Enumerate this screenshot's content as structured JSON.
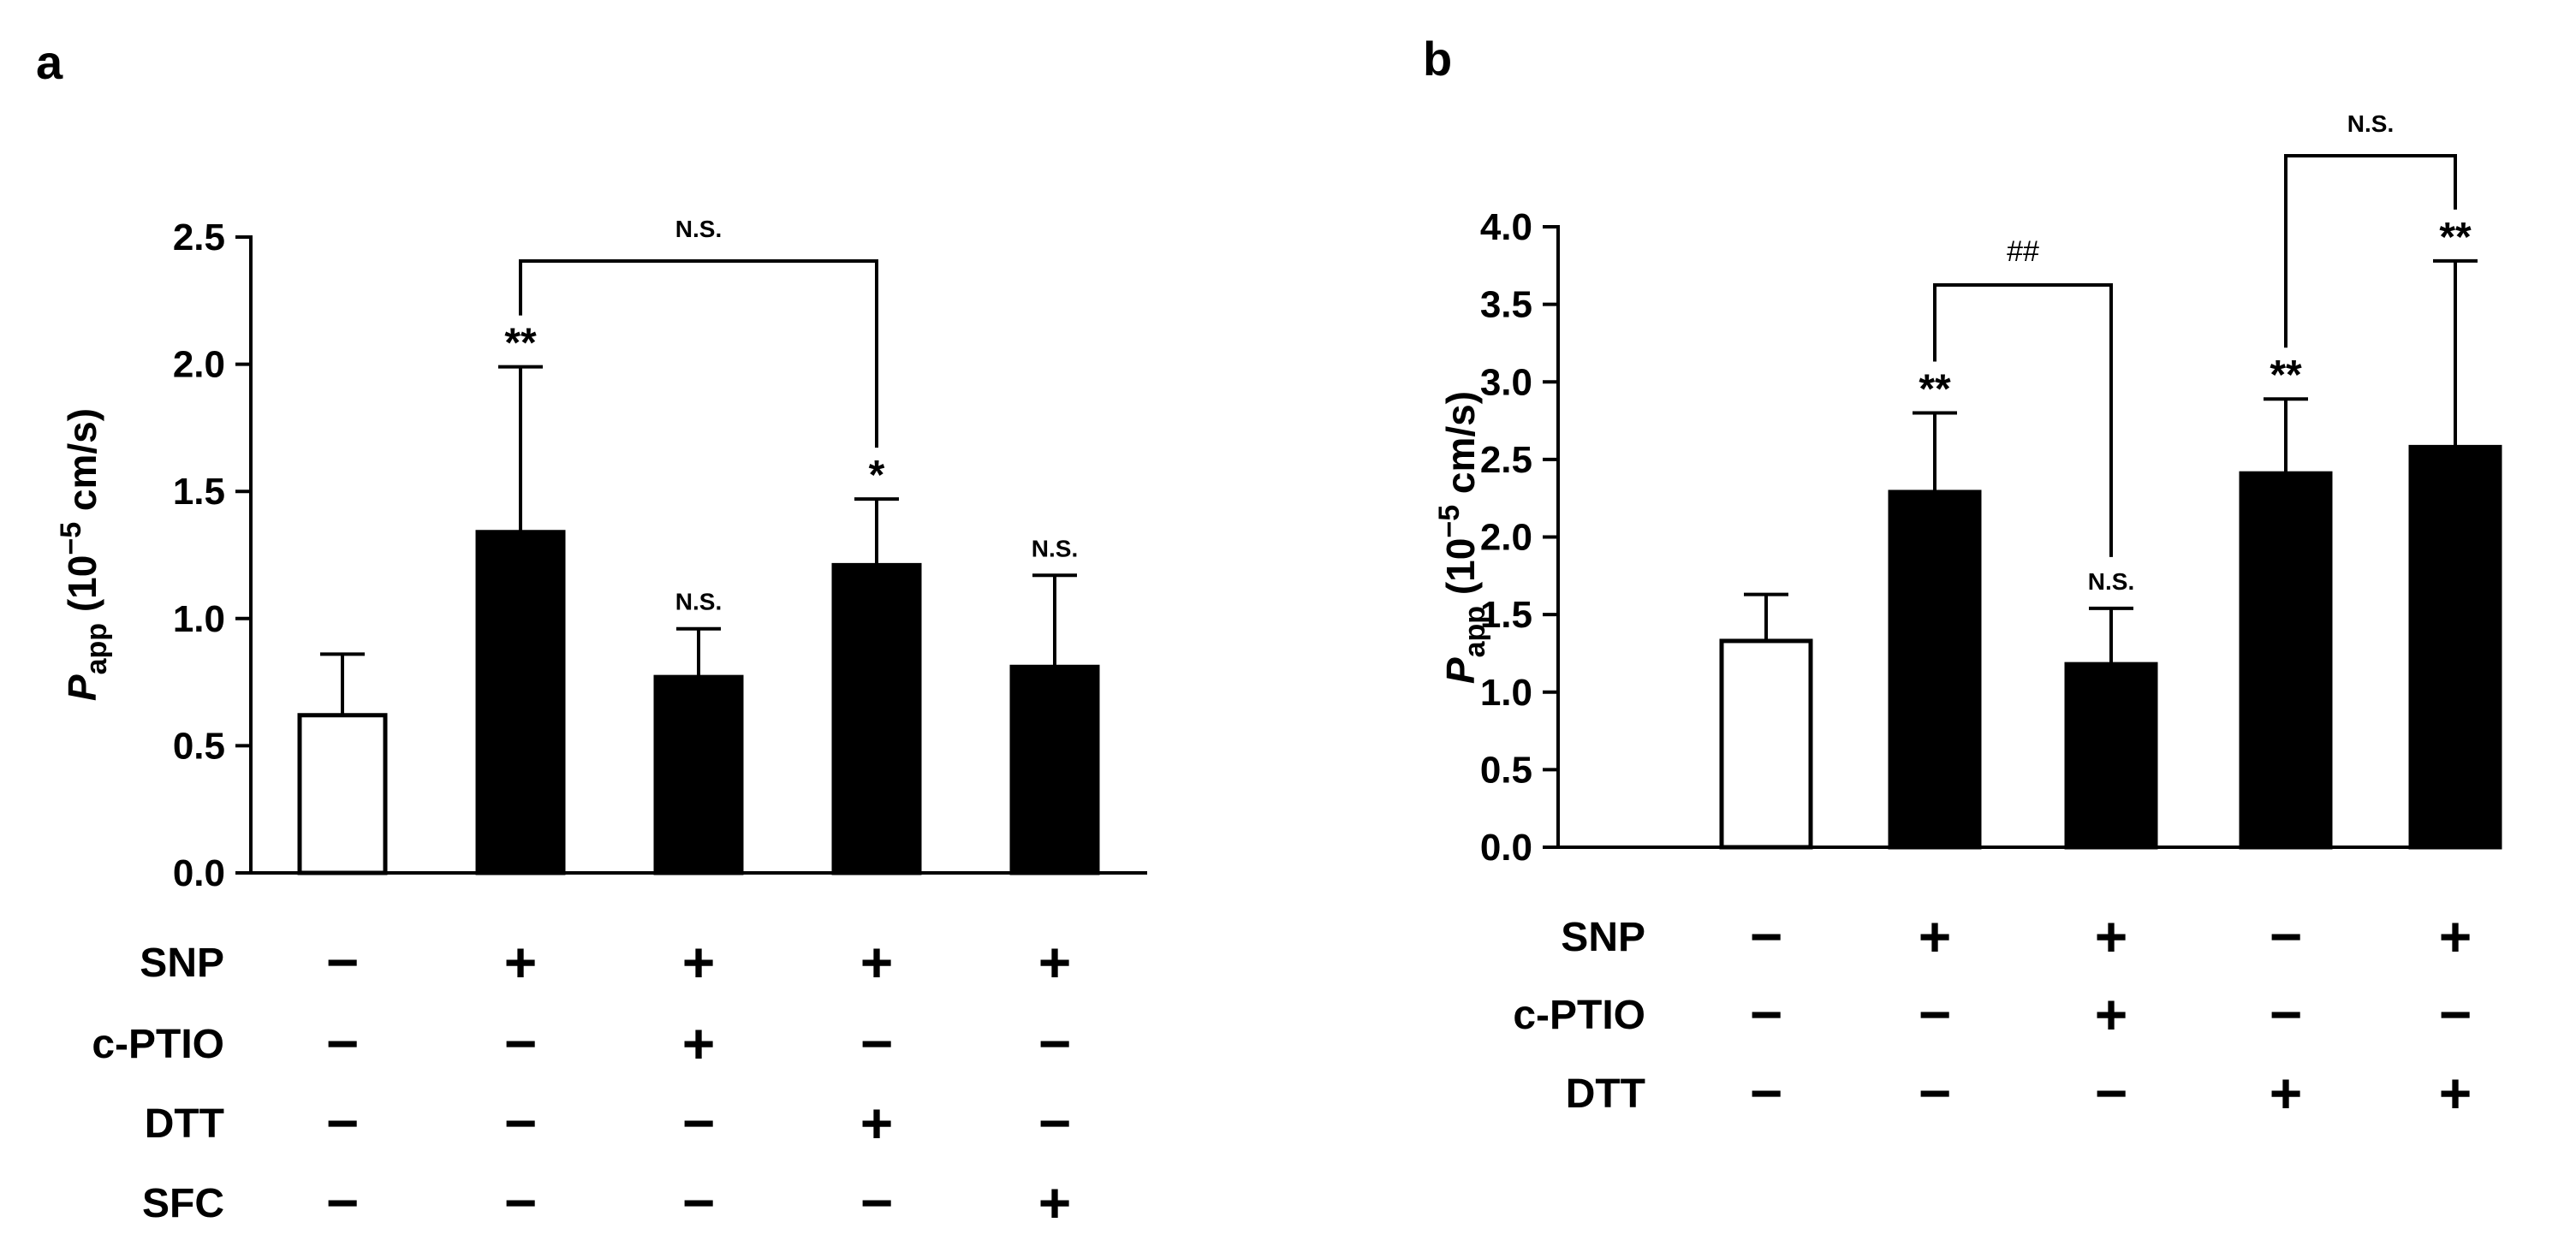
{
  "chart_data": [
    {
      "panel": "a",
      "type": "bar",
      "ylabel": {
        "italic": "P",
        "sub": "app",
        "text": " (10",
        "sup": "−5",
        "unit": " cm/s)"
      },
      "ylim": [
        0,
        2.5
      ],
      "yticks": [
        "0.0",
        "0.5",
        "1.0",
        "1.5",
        "2.0",
        "2.5"
      ],
      "bars": [
        {
          "value": 0.62,
          "error": 0.24,
          "fill": "#ffffff",
          "label": ""
        },
        {
          "value": 1.34,
          "error": 0.65,
          "fill": "#000000",
          "label": "**"
        },
        {
          "value": 0.77,
          "error": 0.19,
          "fill": "#000000",
          "label": "N.S."
        },
        {
          "value": 1.21,
          "error": 0.26,
          "fill": "#000000",
          "label": "*"
        },
        {
          "value": 0.81,
          "error": 0.36,
          "fill": "#000000",
          "label": "N.S."
        }
      ],
      "brackets": [
        {
          "from": 1,
          "to": 3,
          "label": "N.S."
        }
      ],
      "conditions": [
        {
          "name": "SNP",
          "values": [
            "−",
            "+",
            "+",
            "+",
            "+"
          ]
        },
        {
          "name": "c-PTIO",
          "values": [
            "−",
            "−",
            "+",
            "−",
            "−"
          ]
        },
        {
          "name": "DTT",
          "values": [
            "−",
            "−",
            "−",
            "+",
            "−"
          ]
        },
        {
          "name": "SFC",
          "values": [
            "−",
            "−",
            "−",
            "−",
            "+"
          ]
        }
      ]
    },
    {
      "panel": "b",
      "type": "bar",
      "ylabel": {
        "italic": "P",
        "sub": "app",
        "text": " (10",
        "sup": "−5",
        "unit": " cm/s)"
      },
      "ylim": [
        0,
        4.0
      ],
      "yticks": [
        "0.0",
        "0.5",
        "1.0",
        "1.5",
        "2.0",
        "2.5",
        "3.0",
        "3.5",
        "4.0"
      ],
      "bars": [
        {
          "value": 1.33,
          "error": 0.3,
          "fill": "#ffffff",
          "label": ""
        },
        {
          "value": 2.29,
          "error": 0.51,
          "fill": "#000000",
          "label": "**"
        },
        {
          "value": 1.18,
          "error": 0.36,
          "fill": "#000000",
          "label": "N.S."
        },
        {
          "value": 2.41,
          "error": 0.48,
          "fill": "#000000",
          "label": "**"
        },
        {
          "value": 2.58,
          "error": 1.2,
          "fill": "#000000",
          "label": "**"
        }
      ],
      "brackets": [
        {
          "from": 1,
          "to": 2,
          "label": "##"
        },
        {
          "from": 3,
          "to": 4,
          "label": "N.S."
        }
      ],
      "conditions": [
        {
          "name": "SNP",
          "values": [
            "−",
            "+",
            "+",
            "−",
            "+"
          ]
        },
        {
          "name": "c-PTIO",
          "values": [
            "−",
            "−",
            "+",
            "−",
            "−"
          ]
        },
        {
          "name": "DTT",
          "values": [
            "−",
            "−",
            "−",
            "+",
            "+"
          ]
        }
      ]
    }
  ]
}
